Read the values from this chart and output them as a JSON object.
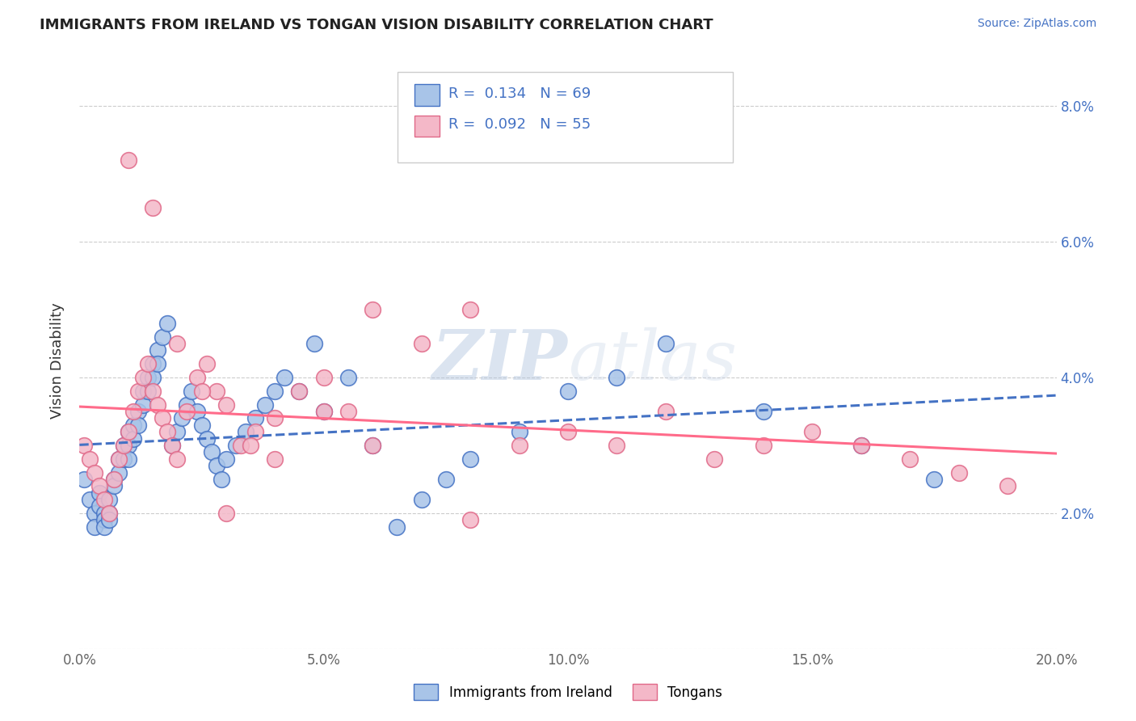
{
  "title": "IMMIGRANTS FROM IRELAND VS TONGAN VISION DISABILITY CORRELATION CHART",
  "source": "Source: ZipAtlas.com",
  "ylabel": "Vision Disability",
  "xlim": [
    0.0,
    0.2
  ],
  "ylim": [
    0.0,
    0.085
  ],
  "x_ticks": [
    0.0,
    0.05,
    0.1,
    0.15,
    0.2
  ],
  "x_tick_labels": [
    "0.0%",
    "5.0%",
    "10.0%",
    "15.0%",
    "20.0%"
  ],
  "y_ticks": [
    0.0,
    0.02,
    0.04,
    0.06,
    0.08
  ],
  "y_tick_labels": [
    "",
    "2.0%",
    "4.0%",
    "6.0%",
    "8.0%"
  ],
  "ireland_R": 0.134,
  "ireland_N": 69,
  "tongan_R": 0.092,
  "tongan_N": 55,
  "ireland_face_color": "#a8c4e8",
  "tongan_face_color": "#f4b8c8",
  "ireland_edge_color": "#4472C4",
  "tongan_edge_color": "#e06888",
  "ireland_line_color": "#4472C4",
  "tongan_line_color": "#FF6B8A",
  "watermark_zip": "ZIP",
  "watermark_atlas": "atlas",
  "background_color": "#ffffff",
  "ireland_x": [
    0.001,
    0.002,
    0.003,
    0.003,
    0.004,
    0.004,
    0.005,
    0.005,
    0.005,
    0.006,
    0.006,
    0.006,
    0.007,
    0.007,
    0.008,
    0.008,
    0.009,
    0.009,
    0.01,
    0.01,
    0.01,
    0.011,
    0.011,
    0.012,
    0.012,
    0.013,
    0.013,
    0.014,
    0.014,
    0.015,
    0.015,
    0.016,
    0.016,
    0.017,
    0.018,
    0.019,
    0.02,
    0.021,
    0.022,
    0.023,
    0.024,
    0.025,
    0.026,
    0.027,
    0.028,
    0.029,
    0.03,
    0.032,
    0.034,
    0.036,
    0.038,
    0.04,
    0.042,
    0.045,
    0.048,
    0.05,
    0.055,
    0.06,
    0.065,
    0.07,
    0.075,
    0.08,
    0.09,
    0.1,
    0.11,
    0.12,
    0.14,
    0.16,
    0.175
  ],
  "ireland_y": [
    0.025,
    0.022,
    0.02,
    0.018,
    0.023,
    0.021,
    0.02,
    0.019,
    0.018,
    0.022,
    0.02,
    0.019,
    0.025,
    0.024,
    0.028,
    0.026,
    0.03,
    0.028,
    0.032,
    0.03,
    0.028,
    0.033,
    0.031,
    0.035,
    0.033,
    0.038,
    0.036,
    0.04,
    0.038,
    0.042,
    0.04,
    0.044,
    0.042,
    0.046,
    0.048,
    0.03,
    0.032,
    0.034,
    0.036,
    0.038,
    0.035,
    0.033,
    0.031,
    0.029,
    0.027,
    0.025,
    0.028,
    0.03,
    0.032,
    0.034,
    0.036,
    0.038,
    0.04,
    0.038,
    0.045,
    0.035,
    0.04,
    0.03,
    0.018,
    0.022,
    0.025,
    0.028,
    0.032,
    0.038,
    0.04,
    0.045,
    0.035,
    0.03,
    0.025
  ],
  "tongan_x": [
    0.001,
    0.002,
    0.003,
    0.004,
    0.005,
    0.006,
    0.007,
    0.008,
    0.009,
    0.01,
    0.011,
    0.012,
    0.013,
    0.014,
    0.015,
    0.016,
    0.017,
    0.018,
    0.019,
    0.02,
    0.022,
    0.024,
    0.026,
    0.028,
    0.03,
    0.033,
    0.036,
    0.04,
    0.045,
    0.05,
    0.055,
    0.06,
    0.07,
    0.08,
    0.09,
    0.1,
    0.11,
    0.12,
    0.13,
    0.14,
    0.15,
    0.16,
    0.17,
    0.18,
    0.19,
    0.01,
    0.015,
    0.02,
    0.025,
    0.03,
    0.035,
    0.04,
    0.05,
    0.06,
    0.08
  ],
  "tongan_y": [
    0.03,
    0.028,
    0.026,
    0.024,
    0.022,
    0.02,
    0.025,
    0.028,
    0.03,
    0.032,
    0.035,
    0.038,
    0.04,
    0.042,
    0.038,
    0.036,
    0.034,
    0.032,
    0.03,
    0.028,
    0.035,
    0.04,
    0.042,
    0.038,
    0.036,
    0.03,
    0.032,
    0.034,
    0.038,
    0.04,
    0.035,
    0.03,
    0.045,
    0.05,
    0.03,
    0.032,
    0.03,
    0.035,
    0.028,
    0.03,
    0.032,
    0.03,
    0.028,
    0.026,
    0.024,
    0.072,
    0.065,
    0.045,
    0.038,
    0.02,
    0.03,
    0.028,
    0.035,
    0.05,
    0.019
  ]
}
